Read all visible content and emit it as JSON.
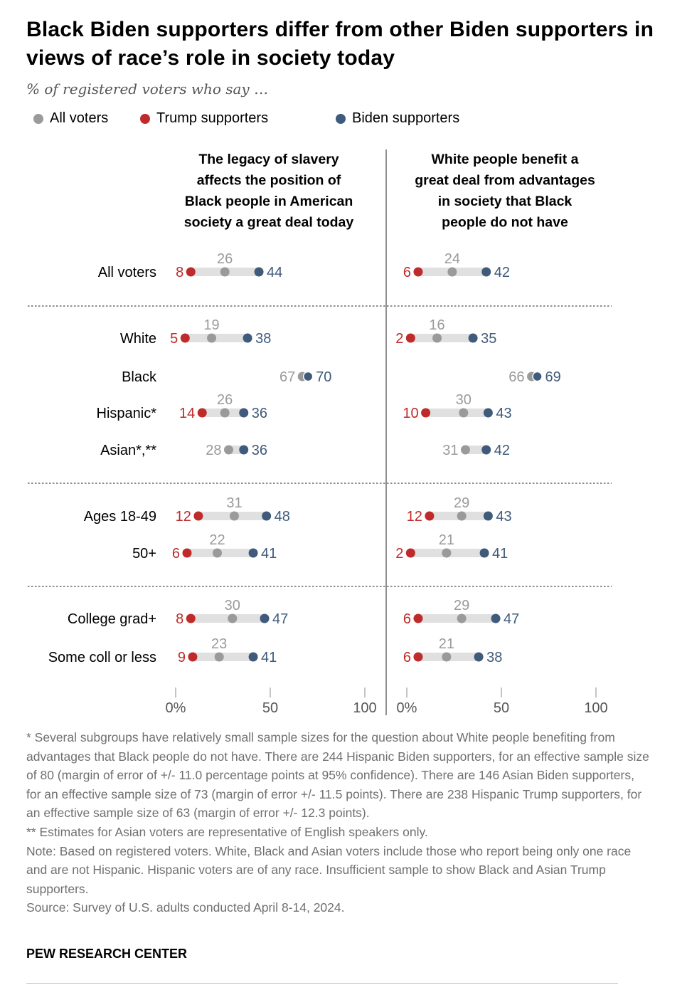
{
  "title": "Black Biden supporters differ from other Biden supporters in views of race’s role in society today",
  "subtitle": "% of registered voters who say …",
  "legend": [
    {
      "label": "All voters",
      "color": "#9a9a9a"
    },
    {
      "label": "Trump supporters",
      "color": "#bf2a2a"
    },
    {
      "label": "Biden supporters",
      "color": "#3f5a7a"
    }
  ],
  "chart_data": {
    "type": "dot-range",
    "panels": [
      {
        "title_lines": [
          "The legacy of slavery",
          "affects the position of",
          "Black people in American",
          "society a great deal today"
        ]
      },
      {
        "title_lines": [
          "White people benefit a",
          "great deal from advantages",
          "in society that Black",
          "people do not have"
        ]
      }
    ],
    "rows": [
      {
        "label": "All voters",
        "values": [
          {
            "all": 26,
            "trump": 8,
            "biden": 44
          },
          {
            "all": 24,
            "trump": 6,
            "biden": 42
          }
        ]
      },
      {
        "label": "White",
        "values": [
          {
            "all": 19,
            "trump": 5,
            "biden": 38
          },
          {
            "all": 16,
            "trump": 2,
            "biden": 35
          }
        ]
      },
      {
        "label": "Black",
        "values": [
          {
            "all": 67,
            "trump": null,
            "biden": 70
          },
          {
            "all": 66,
            "trump": null,
            "biden": 69
          }
        ]
      },
      {
        "label": "Hispanic*",
        "values": [
          {
            "all": 26,
            "trump": 14,
            "biden": 36
          },
          {
            "all": 30,
            "trump": 10,
            "biden": 43
          }
        ]
      },
      {
        "label": "Asian*,**",
        "values": [
          {
            "all": 28,
            "trump": null,
            "biden": 36
          },
          {
            "all": 31,
            "trump": null,
            "biden": 42
          }
        ]
      },
      {
        "label": "Ages 18-49",
        "values": [
          {
            "all": 31,
            "trump": 12,
            "biden": 48
          },
          {
            "all": 29,
            "trump": 12,
            "biden": 43
          }
        ]
      },
      {
        "label": "50+",
        "values": [
          {
            "all": 22,
            "trump": 6,
            "biden": 41
          },
          {
            "all": 21,
            "trump": 2,
            "biden": 41
          }
        ]
      },
      {
        "label": "College grad+",
        "values": [
          {
            "all": 30,
            "trump": 8,
            "biden": 47
          },
          {
            "all": 29,
            "trump": 6,
            "biden": 47
          }
        ]
      },
      {
        "label": "Some coll or less",
        "values": [
          {
            "all": 23,
            "trump": 9,
            "biden": 41
          },
          {
            "all": 21,
            "trump": 6,
            "biden": 38
          }
        ]
      }
    ],
    "x_range": [
      0,
      100
    ],
    "ticks": [
      {
        "value": 0,
        "label": "0%"
      },
      {
        "value": 50,
        "label": "50"
      },
      {
        "value": 100,
        "label": "100"
      }
    ]
  },
  "notes": [
    "* Several subgroups have relatively small sample sizes for the question about White people benefiting from advantages that Black people do not have. There are 244 Hispanic Biden supporters, for an effective sample size of 80 (margin of error of +/- 11.0 percentage points at 95% confidence). There are 146 Asian Biden supporters, for an effective sample size of 73 (margin of error +/- 11.5 points). There are 238 Hispanic Trump supporters, for an effective sample size of 63 (margin of error +/- 12.3 points).",
    "** Estimates for Asian voters are representative of English speakers only.",
    "Note: Based on registered voters. White, Black and Asian voters include those who report being only one race and are not Hispanic. Hispanic voters are of any race. Insufficient sample to show Black and Asian Trump supporters.",
    "Source: Survey of U.S. adults conducted April 8-14, 2024."
  ],
  "brand": "PEW RESEARCH CENTER"
}
